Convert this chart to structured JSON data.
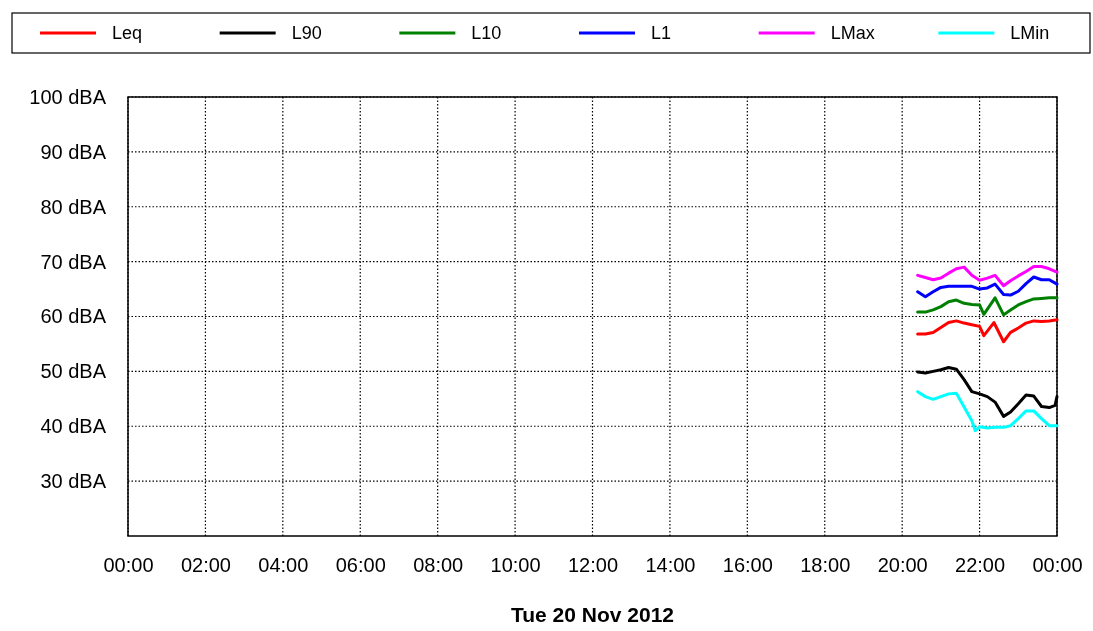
{
  "chart_data": {
    "type": "line",
    "xlabel": "Tue 20 Nov 2012",
    "legend": "top",
    "grid": true,
    "marker": "none",
    "line_style": "solid",
    "xlim": [
      0,
      24
    ],
    "ylim": [
      20,
      100
    ],
    "xticks": [
      {
        "value": 0,
        "label": "00:00"
      },
      {
        "value": 2,
        "label": "02:00"
      },
      {
        "value": 4,
        "label": "04:00"
      },
      {
        "value": 6,
        "label": "06:00"
      },
      {
        "value": 8,
        "label": "08:00"
      },
      {
        "value": 10,
        "label": "10:00"
      },
      {
        "value": 12,
        "label": "12:00"
      },
      {
        "value": 14,
        "label": "14:00"
      },
      {
        "value": 16,
        "label": "16:00"
      },
      {
        "value": 18,
        "label": "18:00"
      },
      {
        "value": 20,
        "label": "20:00"
      },
      {
        "value": 22,
        "label": "22:00"
      },
      {
        "value": 24,
        "label": "00:00"
      }
    ],
    "yticks": [
      {
        "value": 30,
        "label": "30 dBA"
      },
      {
        "value": 40,
        "label": "40 dBA"
      },
      {
        "value": 50,
        "label": "50 dBA"
      },
      {
        "value": 60,
        "label": "60 dBA"
      },
      {
        "value": 70,
        "label": "70 dBA"
      },
      {
        "value": 80,
        "label": "80 dBA"
      },
      {
        "value": 90,
        "label": "90 dBA"
      },
      {
        "value": 100,
        "label": "100 dBA"
      }
    ],
    "series": [
      {
        "name": "Leq",
        "color": "#ff0000",
        "x": [
          20.4,
          20.6,
          20.8,
          21.0,
          21.2,
          21.4,
          21.6,
          21.8,
          22.0,
          22.11,
          22.37,
          22.62,
          22.8,
          23.0,
          23.2,
          23.4,
          23.6,
          23.8,
          24.0
        ],
        "values": [
          56.8,
          56.8,
          57.1,
          58.0,
          58.9,
          59.2,
          58.8,
          58.5,
          58.2,
          56.5,
          58.9,
          55.4,
          57.1,
          57.9,
          58.8,
          59.2,
          59.1,
          59.2,
          59.4
        ]
      },
      {
        "name": "L90",
        "color": "#000000",
        "x": [
          20.4,
          20.6,
          20.8,
          21.0,
          21.2,
          21.4,
          21.6,
          21.8,
          22.0,
          22.2,
          22.4,
          22.62,
          22.8,
          23.0,
          23.2,
          23.4,
          23.6,
          23.8,
          23.95,
          24.0
        ],
        "values": [
          49.9,
          49.7,
          50.0,
          50.3,
          50.7,
          50.4,
          48.5,
          46.3,
          45.9,
          45.4,
          44.4,
          41.8,
          42.6,
          44.1,
          45.7,
          45.5,
          43.6,
          43.4,
          43.8,
          45.4
        ]
      },
      {
        "name": "L10",
        "color": "#008000",
        "x": [
          20.4,
          20.6,
          20.8,
          21.0,
          21.2,
          21.4,
          21.6,
          21.8,
          22.0,
          22.11,
          22.4,
          22.62,
          22.8,
          23.0,
          23.2,
          23.4,
          23.6,
          23.8,
          24.0
        ],
        "values": [
          60.8,
          60.8,
          61.2,
          61.8,
          62.7,
          63.0,
          62.4,
          62.2,
          62.1,
          60.4,
          63.4,
          60.3,
          61.2,
          62.1,
          62.7,
          63.2,
          63.3,
          63.4,
          63.4
        ]
      },
      {
        "name": "L1",
        "color": "#0000ff",
        "x": [
          20.4,
          20.6,
          20.8,
          21.0,
          21.2,
          21.4,
          21.6,
          21.8,
          22.0,
          22.2,
          22.4,
          22.62,
          22.8,
          23.0,
          23.2,
          23.4,
          23.6,
          23.8,
          24.0
        ],
        "values": [
          64.5,
          63.6,
          64.5,
          65.3,
          65.5,
          65.5,
          65.5,
          65.5,
          65.0,
          65.2,
          65.9,
          64.0,
          63.9,
          64.6,
          66.0,
          67.2,
          66.7,
          66.7,
          65.9
        ]
      },
      {
        "name": "LMax",
        "color": "#ff00ff",
        "x": [
          20.4,
          20.6,
          20.8,
          21.0,
          21.2,
          21.4,
          21.6,
          21.8,
          22.0,
          22.2,
          22.4,
          22.62,
          22.8,
          23.0,
          23.2,
          23.4,
          23.6,
          23.8,
          24.0
        ],
        "values": [
          67.5,
          67.1,
          66.7,
          67.0,
          67.9,
          68.7,
          69.0,
          67.5,
          66.6,
          67.0,
          67.5,
          65.6,
          66.5,
          67.4,
          68.2,
          69.1,
          69.1,
          68.7,
          68.1
        ]
      },
      {
        "name": "LMin",
        "color": "#00ffff",
        "x": [
          20.4,
          20.6,
          20.8,
          21.0,
          21.2,
          21.4,
          21.6,
          21.8,
          21.89,
          22.0,
          22.2,
          22.4,
          22.62,
          22.8,
          23.0,
          23.2,
          23.4,
          23.6,
          23.8,
          24.0
        ],
        "values": [
          46.3,
          45.4,
          44.9,
          45.4,
          45.9,
          46.0,
          43.5,
          41.0,
          39.2,
          39.9,
          39.7,
          39.8,
          39.8,
          40.1,
          41.4,
          42.8,
          42.8,
          41.4,
          40.1,
          40.1
        ]
      }
    ]
  }
}
